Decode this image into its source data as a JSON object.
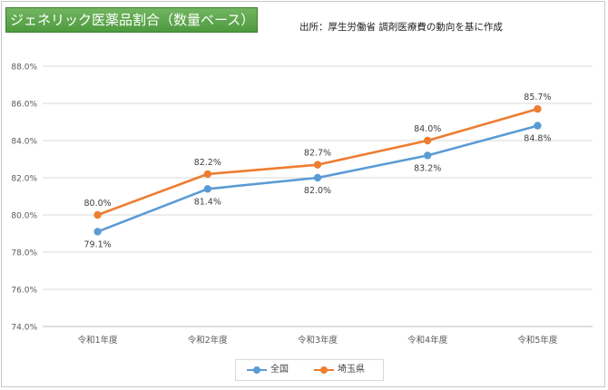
{
  "header": {
    "title": "ジェネリック医薬品割合（数量ベース）",
    "source": "出所：厚生労働省 調剤医療費の動向を基に作成"
  },
  "legend": {
    "items": [
      {
        "label": "全国",
        "color": "#5b9bd5"
      },
      {
        "label": "埼玉県",
        "color": "#ed7d31"
      }
    ]
  },
  "chart_data": {
    "type": "line",
    "categories": [
      "令和1年度",
      "令和2年度",
      "令和3年度",
      "令和4年度",
      "令和5年度"
    ],
    "ylim": [
      74.0,
      88.0
    ],
    "yticks": [
      "74.0%",
      "76.0%",
      "78.0%",
      "80.0%",
      "82.0%",
      "84.0%",
      "86.0%",
      "88.0%"
    ],
    "grid": true,
    "legend_position": "bottom",
    "series": [
      {
        "name": "全国",
        "color": "#5b9bd5",
        "values": [
          79.1,
          81.4,
          82.0,
          83.2,
          84.8
        ],
        "labels": [
          "79.1%",
          "81.4%",
          "82.0%",
          "83.2%",
          "84.8%"
        ],
        "label_position": "below"
      },
      {
        "name": "埼玉県",
        "color": "#ed7d31",
        "values": [
          80.0,
          82.2,
          82.7,
          84.0,
          85.7
        ],
        "labels": [
          "80.0%",
          "82.2%",
          "82.7%",
          "84.0%",
          "85.7%"
        ],
        "label_position": "above"
      }
    ]
  }
}
